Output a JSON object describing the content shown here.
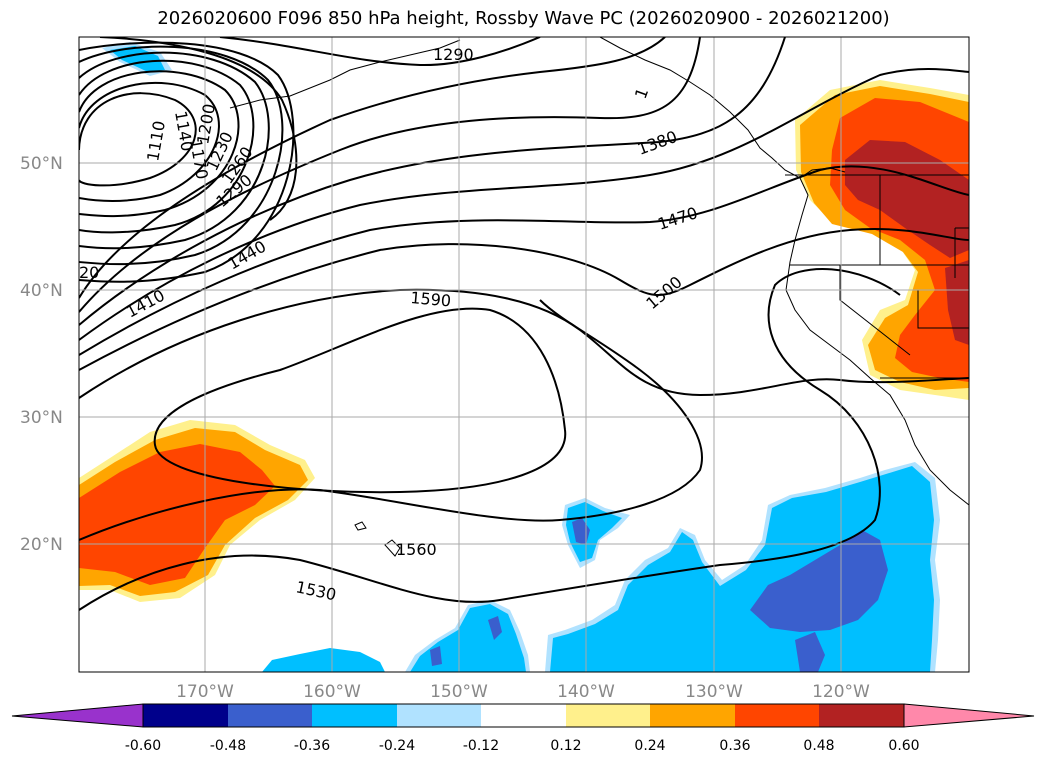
{
  "title": "2026020600 F096 850 hPa height, Rossby Wave PC (2026020900 - 2026021200)",
  "map": {
    "lat_labels": [
      "50°N",
      "40°N",
      "30°N",
      "20°N"
    ],
    "lon_labels": [
      "170°W",
      "160°W",
      "150°W",
      "140°W",
      "130°W",
      "120°W"
    ],
    "contour_labels": [
      "1290",
      "1380",
      "1470",
      "1500",
      "1590",
      "1560",
      "1530",
      "1440",
      "1410",
      "1290",
      "1260",
      "1230",
      "1200",
      "1170",
      "1140",
      "1110",
      "20",
      "1"
    ]
  },
  "colorbar": {
    "levels": [
      "-0.60",
      "-0.48",
      "-0.36",
      "-0.24",
      "-0.12",
      "0.12",
      "0.24",
      "0.36",
      "0.48",
      "0.60"
    ],
    "colors": {
      "under": "#9932cc",
      "c1": "#00008b",
      "c2": "#3a5fcd",
      "c3": "#00bfff",
      "c4": "#b0e2ff",
      "c5": "#ffffff",
      "c6": "#fff08c",
      "c7": "#ffa500",
      "c8": "#ff4500",
      "c9": "#b22222",
      "over": "#ff88aa"
    }
  }
}
